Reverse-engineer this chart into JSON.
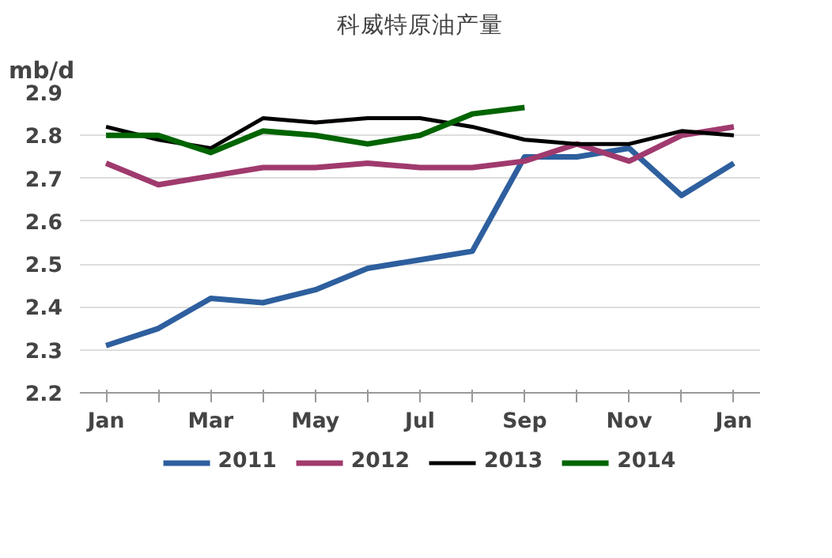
{
  "chart_data": {
    "type": "line",
    "title": "科威特原油产量",
    "ylabel": "mb/d",
    "categories": [
      "Jan",
      null,
      "Mar",
      null,
      "May",
      null,
      "Jul",
      null,
      "Sep",
      null,
      "Nov",
      null,
      "Jan"
    ],
    "series": [
      {
        "name": "2011",
        "color": "#2e5f9e",
        "values": [
          2.31,
          2.35,
          2.42,
          2.41,
          2.44,
          2.49,
          2.51,
          2.53,
          2.75,
          2.75,
          2.77,
          2.66,
          2.735
        ]
      },
      {
        "name": "2012",
        "color": "#a03a6e",
        "values": [
          2.735,
          2.685,
          2.705,
          2.725,
          2.725,
          2.735,
          2.725,
          2.725,
          2.74,
          2.78,
          2.74,
          2.8,
          2.82
        ]
      },
      {
        "name": "2013",
        "color": "#000000",
        "values": [
          2.82,
          2.79,
          2.77,
          2.84,
          2.83,
          2.84,
          2.84,
          2.82,
          2.79,
          2.78,
          2.78,
          2.81,
          2.8
        ]
      },
      {
        "name": "2014",
        "color": "#006400",
        "values": [
          2.8,
          2.8,
          2.76,
          2.81,
          2.8,
          2.78,
          2.8,
          2.85,
          2.865,
          null,
          null,
          null,
          null
        ]
      }
    ],
    "ylim": [
      2.2,
      2.9
    ],
    "yticks": [
      2.2,
      2.3,
      2.4,
      2.5,
      2.6,
      2.7,
      2.8,
      2.9
    ],
    "grid": "y",
    "legend": "bottom"
  }
}
